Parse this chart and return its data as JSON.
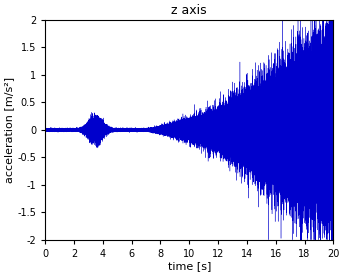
{
  "title": "z axis",
  "xlabel": "time [s]",
  "ylabel": "acceleration [m/s²]",
  "xlim": [
    0,
    20
  ],
  "ylim": [
    -2,
    2
  ],
  "xticks": [
    0,
    2,
    4,
    6,
    8,
    10,
    12,
    14,
    16,
    18,
    20
  ],
  "yticks": [
    -2,
    -1.5,
    -1,
    -0.5,
    0,
    0.5,
    1,
    1.5,
    2
  ],
  "line_color": "#0000CC",
  "background_color": "#FFFFFF",
  "axes_facecolor": "#FFFFFF",
  "sample_rate": 4000,
  "duration": 20,
  "seed": 7
}
